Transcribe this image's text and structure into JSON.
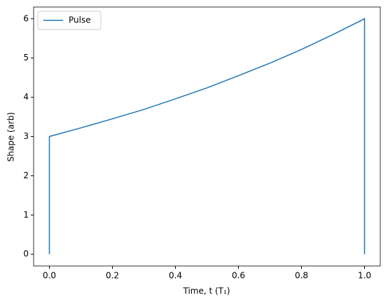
{
  "chart_data": {
    "type": "line",
    "xlabel": "Time, t (T₁)",
    "ylabel": "Shape (arb)",
    "x": [
      0,
      0,
      0.1,
      0.2,
      0.3,
      0.4,
      0.5,
      0.6,
      0.7,
      0.8,
      0.9,
      1.0,
      1.0
    ],
    "series": [
      {
        "name": "Pulse",
        "color": "#1f77b4",
        "values": [
          0,
          3,
          3.22,
          3.45,
          3.69,
          3.96,
          4.24,
          4.55,
          4.87,
          5.22,
          5.6,
          6,
          0
        ]
      }
    ],
    "xlim": [
      -0.05,
      1.05
    ],
    "ylim": [
      -0.3,
      6.3
    ],
    "xticks": [
      {
        "value": 0,
        "label": "0.0"
      },
      {
        "value": 0.2,
        "label": "0.2"
      },
      {
        "value": 0.4,
        "label": "0.4"
      },
      {
        "value": 0.6,
        "label": "0.6"
      },
      {
        "value": 0.8,
        "label": "0.8"
      },
      {
        "value": 1,
        "label": "1.0"
      }
    ],
    "yticks": [
      0,
      1,
      2,
      3,
      4,
      5,
      6
    ],
    "legend": "upper left",
    "grid": false
  }
}
